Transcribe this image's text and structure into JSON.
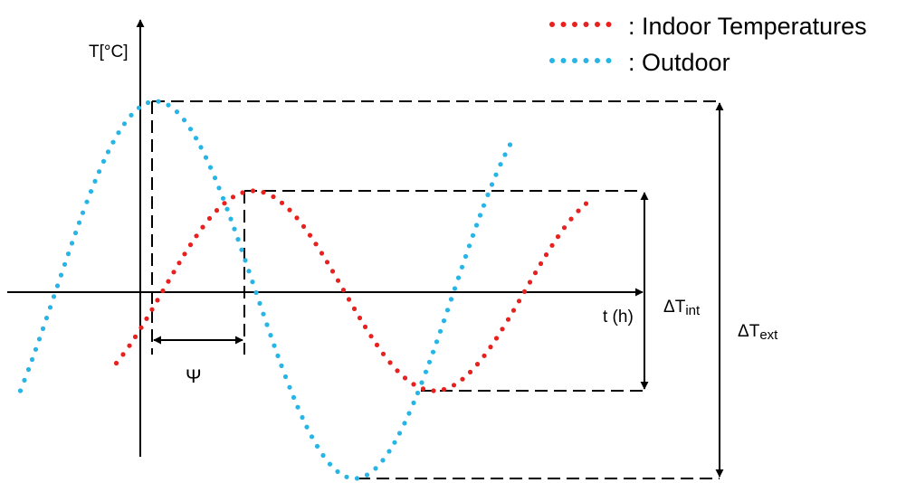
{
  "axes": {
    "y_label": "T[°C]",
    "x_label": "t (h)"
  },
  "legend": {
    "indoor": {
      "text": ": Indoor Temperatures",
      "color": "#e8201e"
    },
    "outdoor": {
      "text": ": Outdoor",
      "color": "#27b5e6"
    }
  },
  "annotations": {
    "phase_shift": "Ψ",
    "delta_int_base": "ΔT",
    "delta_int_sub": "int",
    "delta_ext_base": "ΔT",
    "delta_ext_sub": "ext"
  },
  "colors": {
    "axis": "#000000",
    "guide": "#000000"
  }
}
